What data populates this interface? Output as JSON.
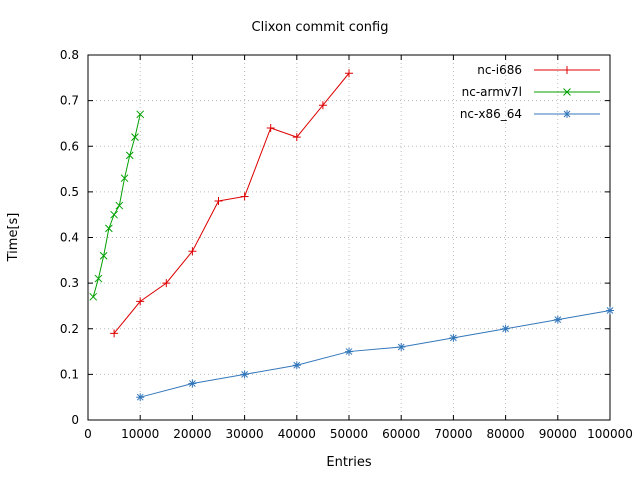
{
  "chart_data": {
    "type": "line",
    "title": "Clixon commit config",
    "xlabel": "Entries",
    "ylabel": "Time[s]",
    "xlim": [
      0,
      100000
    ],
    "ylim": [
      0,
      0.8
    ],
    "xticks": [
      0,
      10000,
      20000,
      30000,
      40000,
      50000,
      60000,
      70000,
      80000,
      90000,
      100000
    ],
    "yticks": [
      0,
      0.1,
      0.2,
      0.3,
      0.4,
      0.5,
      0.6,
      0.7,
      0.8
    ],
    "grid": true,
    "legend_position": "top-right",
    "colors": {
      "grid": "#bbbbbb",
      "border": "#000000",
      "red": "#dd0000",
      "green": "#00a000",
      "blue": "#3377bb"
    },
    "series": [
      {
        "name": "nc-i686",
        "color": "#dd0000",
        "marker": "plus",
        "points": [
          [
            5000,
            0.19
          ],
          [
            10000,
            0.26
          ],
          [
            15000,
            0.3
          ],
          [
            20000,
            0.37
          ],
          [
            25000,
            0.48
          ],
          [
            30000,
            0.49
          ],
          [
            35000,
            0.64
          ],
          [
            40000,
            0.62
          ],
          [
            45000,
            0.69
          ],
          [
            50000,
            0.76
          ]
        ]
      },
      {
        "name": "nc-armv7l",
        "color": "#00a000",
        "marker": "x",
        "points": [
          [
            1000,
            0.27
          ],
          [
            2000,
            0.31
          ],
          [
            3000,
            0.36
          ],
          [
            4000,
            0.42
          ],
          [
            5000,
            0.45
          ],
          [
            6000,
            0.47
          ],
          [
            7000,
            0.53
          ],
          [
            8000,
            0.58
          ],
          [
            9000,
            0.62
          ],
          [
            10000,
            0.67
          ]
        ]
      },
      {
        "name": "nc-x86_64",
        "color": "#3377bb",
        "marker": "asterisk",
        "points": [
          [
            10000,
            0.05
          ],
          [
            20000,
            0.08
          ],
          [
            30000,
            0.1
          ],
          [
            40000,
            0.12
          ],
          [
            50000,
            0.15
          ],
          [
            60000,
            0.16
          ],
          [
            70000,
            0.18
          ],
          [
            80000,
            0.2
          ],
          [
            90000,
            0.22
          ],
          [
            100000,
            0.24
          ]
        ]
      }
    ]
  }
}
